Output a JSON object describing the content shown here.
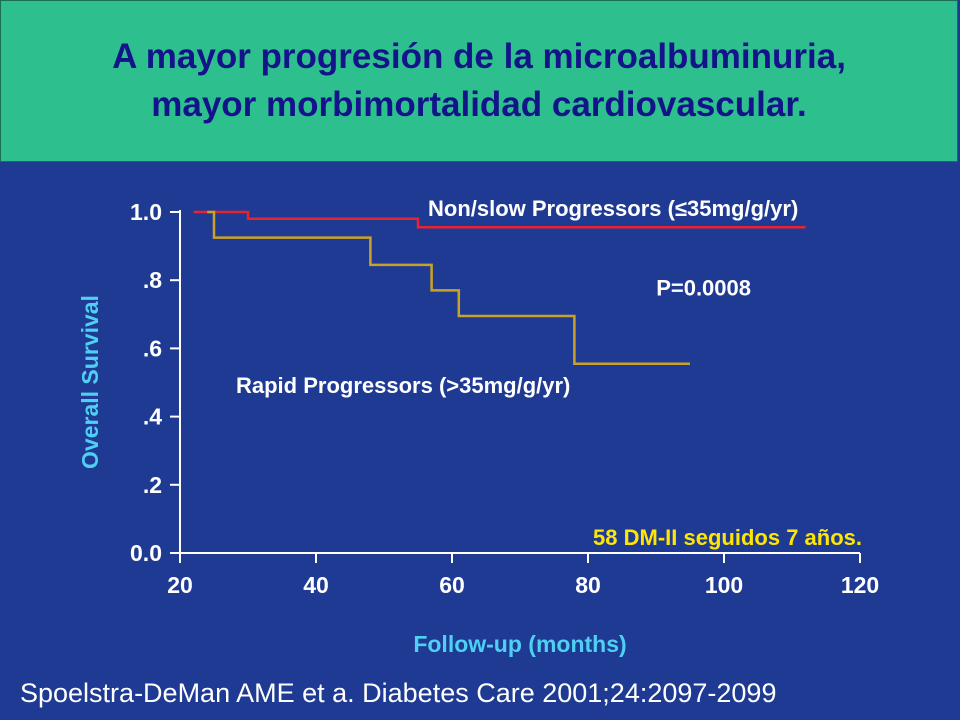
{
  "slide": {
    "title_line1": "A mayor progresión de la microalbuminuria,",
    "title_line2": "mayor morbimortalidad cardiovascular.",
    "citation": "Spoelstra-DeMan AME et a. Diabetes Care 2001;24:2097-2099",
    "note": "58 DM-II seguidos 7 años."
  },
  "colors": {
    "background": "#1f3a93",
    "title_bg": "#2ebf8f",
    "title_text": "#14148a",
    "axis": "#ffffff",
    "axis_title": "#4fd0f2",
    "note": "#ffe600",
    "series_slow": "#e8222f",
    "series_rapid": "#c9a227"
  },
  "chart_data": {
    "type": "line",
    "subtype": "step",
    "xlabel": "Follow-up (months)",
    "ylabel": "Overall Survival",
    "xlim": [
      20,
      120
    ],
    "ylim": [
      0,
      1.0
    ],
    "x_ticks": [
      20,
      40,
      60,
      80,
      100,
      120
    ],
    "x_tick_labels": [
      "20",
      "40",
      "60",
      "80",
      "100",
      "120"
    ],
    "y_ticks": [
      0,
      0.2,
      0.4,
      0.6,
      0.8,
      1.0
    ],
    "y_tick_labels": [
      "0.0",
      ".2",
      ".4",
      ".6",
      ".8",
      "1.0"
    ],
    "grid": false,
    "series": [
      {
        "name": "Non/slow Progressors (≤35mg/g/yr)",
        "points": [
          [
            22,
            1.0
          ],
          [
            30,
            1.0
          ],
          [
            30,
            0.98
          ],
          [
            55,
            0.98
          ],
          [
            55,
            0.955
          ],
          [
            112,
            0.955
          ]
        ]
      },
      {
        "name": "Rapid Progressors (>35mg/g/yr)",
        "points": [
          [
            24,
            1.0
          ],
          [
            25,
            1.0
          ],
          [
            25,
            0.925
          ],
          [
            48,
            0.925
          ],
          [
            48,
            0.845
          ],
          [
            57,
            0.845
          ],
          [
            57,
            0.77
          ],
          [
            61,
            0.77
          ],
          [
            61,
            0.695
          ],
          [
            78,
            0.695
          ],
          [
            78,
            0.555
          ],
          [
            95,
            0.555
          ]
        ]
      }
    ],
    "annotations": [
      {
        "text": "P=0.0008",
        "x": 97,
        "y": 0.755
      }
    ]
  }
}
